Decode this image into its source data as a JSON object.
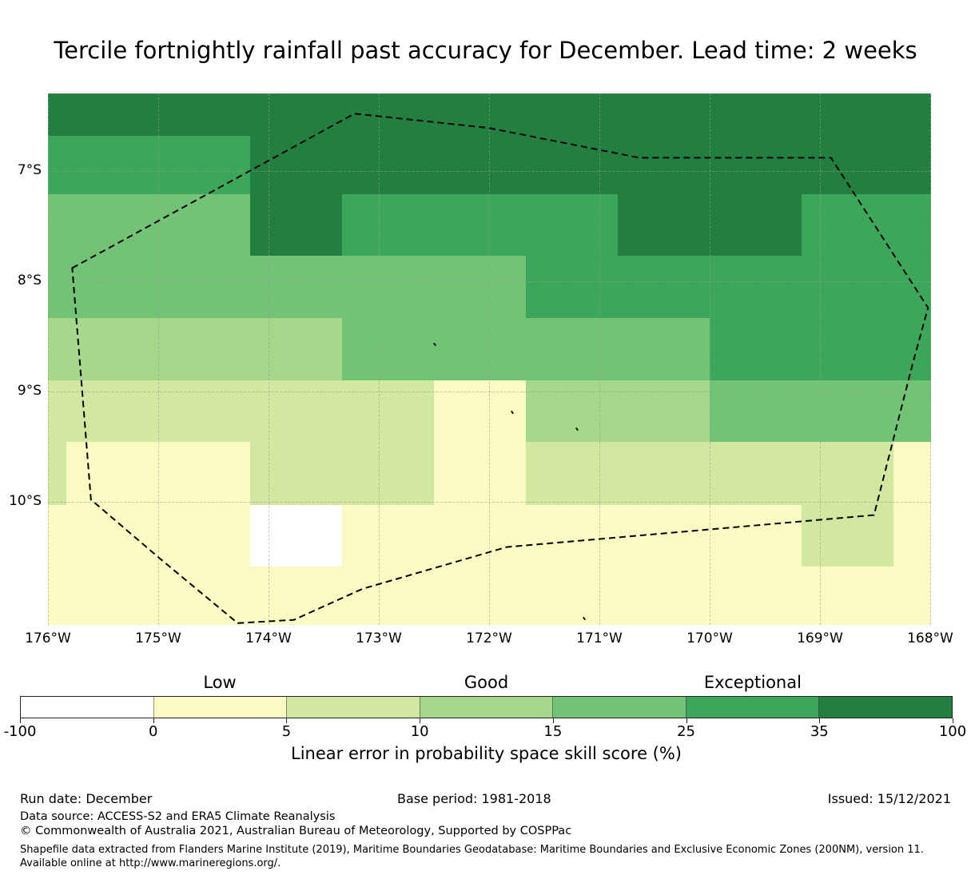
{
  "title": "Tercile fortnightly rainfall past accuracy for December. Lead time: 2 weeks",
  "map": {
    "x_tick_labels": [
      "176°W",
      "175°W",
      "174°W",
      "173°W",
      "172°W",
      "171°W",
      "170°W",
      "169°W",
      "168°W"
    ],
    "y_tick_labels": [
      "7°S",
      "8°S",
      "9°S",
      "10°S"
    ]
  },
  "chart_data": {
    "type": "heatmap",
    "title": "Tercile fortnightly rainfall past accuracy for December. Lead time: 2 weeks",
    "value_label": "Linear error in probability space skill score (%)",
    "lon_edges_deg_west": [
      176.0,
      175.83,
      175.0,
      174.17,
      173.33,
      172.5,
      171.67,
      170.83,
      170.0,
      169.17,
      168.33,
      168.0
    ],
    "lat_edges_deg_south": [
      6.3,
      6.68,
      7.21,
      7.77,
      8.33,
      8.9,
      9.46,
      10.03,
      10.59,
      11.12
    ],
    "lon_gridlines_deg_west": [
      176,
      175,
      174,
      173,
      172,
      171,
      170,
      169,
      168
    ],
    "lat_gridlines_deg_south": [
      7,
      8,
      9,
      10
    ],
    "bin_edges": [
      -100,
      0,
      5,
      10,
      15,
      25,
      35,
      100
    ],
    "bin_colors": [
      "#ffffff",
      "#f9fbc2",
      "#d2e8a0",
      "#a5d88a",
      "#73c376",
      "#3ca75b",
      "#237f3f"
    ],
    "grid_levels": [
      [
        6,
        6,
        6,
        6,
        6,
        6,
        6,
        6,
        6,
        6,
        6
      ],
      [
        5,
        5,
        5,
        6,
        6,
        6,
        6,
        6,
        6,
        6,
        6
      ],
      [
        4,
        4,
        4,
        6,
        5,
        5,
        5,
        6,
        6,
        5,
        5
      ],
      [
        4,
        4,
        4,
        4,
        4,
        4,
        5,
        5,
        5,
        5,
        5
      ],
      [
        3,
        3,
        3,
        3,
        4,
        4,
        4,
        4,
        5,
        5,
        5
      ],
      [
        2,
        2,
        2,
        2,
        2,
        1,
        3,
        3,
        4,
        4,
        4
      ],
      [
        2,
        1,
        1,
        2,
        2,
        1,
        2,
        2,
        2,
        2,
        1
      ],
      [
        1,
        1,
        1,
        0,
        1,
        1,
        1,
        1,
        1,
        2,
        1
      ],
      [
        1,
        1,
        1,
        1,
        1,
        1,
        1,
        1,
        1,
        1,
        1
      ]
    ],
    "eez_boundary_deg": [
      [
        175.78,
        7.88
      ],
      [
        173.22,
        6.48
      ],
      [
        172.0,
        6.61
      ],
      [
        170.64,
        6.88
      ],
      [
        168.9,
        6.88
      ],
      [
        168.02,
        8.24
      ],
      [
        168.16,
        8.75
      ],
      [
        168.51,
        10.12
      ],
      [
        171.84,
        10.41
      ],
      [
        173.15,
        10.79
      ],
      [
        173.77,
        11.07
      ],
      [
        174.28,
        11.1
      ],
      [
        174.99,
        10.51
      ],
      [
        175.61,
        9.98
      ]
    ],
    "islands_deg": [
      [
        172.49,
        8.57
      ],
      [
        171.79,
        9.19
      ],
      [
        171.2,
        9.34
      ],
      [
        171.14,
        11.06
      ]
    ]
  },
  "colorbar": {
    "tick_labels": [
      "-100",
      "0",
      "5",
      "10",
      "15",
      "25",
      "35",
      "100"
    ],
    "categories": [
      {
        "label": "Low",
        "center_bin": 1.5
      },
      {
        "label": "Good",
        "center_bin": 3.5
      },
      {
        "label": "Exceptional",
        "center_bin": 5.5
      }
    ],
    "caption": "Linear error in probability space skill score (%)"
  },
  "footer": {
    "run_date": "Run date: December",
    "base_period": "Base period: 1981-2018",
    "issued": "Issued: 15/12/2021",
    "data_source": "Data source: ACCESS-S2 and ERA5 Climate Reanalysis",
    "copyright": "© Commonwealth of Australia 2021, Australian Bureau of Meteorology, Supported by COSPPac",
    "shapefile_note": "Shapefile data extracted from Flanders Marine Institute (2019), Maritime Boundaries Geodatabase: Maritime Boundaries and Exclusive Economic Zones (200NM), version 11. Available online at http://www.marineregions.org/."
  }
}
